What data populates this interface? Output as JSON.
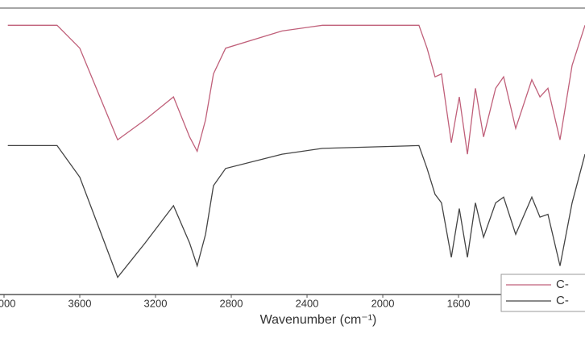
{
  "chart_data": {
    "type": "line",
    "x_label": "Wavenumber (cm⁻¹)",
    "x": [
      3980,
      3720,
      3600,
      3400,
      3255,
      3105,
      3020,
      2980,
      2936,
      2894,
      2830,
      2532,
      2319,
      1809,
      1766,
      1724,
      1690,
      1638,
      1596,
      1553,
      1511,
      1468,
      1404,
      1362,
      1298,
      1213,
      1170,
      1128,
      1064,
      1000,
      932
    ],
    "series": [
      {
        "name": "C-",
        "color": "#c0607a",
        "values": [
          94,
          94,
          86,
          54,
          61,
          69,
          55,
          50,
          61,
          77,
          86,
          92,
          94,
          94,
          86,
          76,
          77,
          53,
          69,
          49,
          72,
          55,
          72,
          76,
          58,
          75,
          69,
          72,
          54,
          80,
          94
        ]
      },
      {
        "name": "C-",
        "color": "#444444",
        "values": [
          52,
          52,
          41,
          6,
          18,
          31,
          18,
          10,
          21,
          38,
          44,
          49,
          51,
          52,
          44,
          35,
          32,
          13,
          30,
          13,
          32,
          20,
          32,
          34,
          21,
          34,
          27,
          28,
          10,
          32,
          49
        ]
      }
    ],
    "xlim": [
      4000,
      930
    ],
    "xticks": [
      4000,
      3600,
      3200,
      2800,
      2400,
      2000,
      1600,
      1200
    ],
    "ylim": [
      0,
      100
    ],
    "legend": "lower right"
  }
}
